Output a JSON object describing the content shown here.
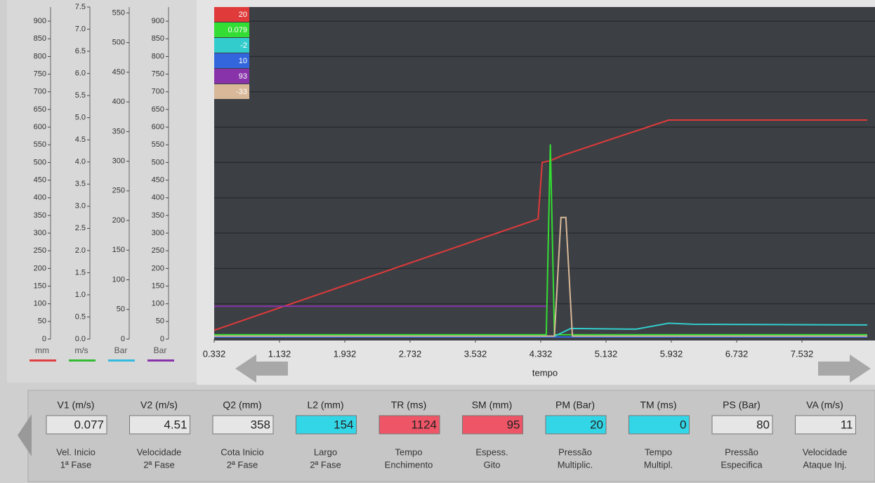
{
  "chart_data": {
    "type": "line",
    "xlabel": "tempo",
    "xlim": [
      0.332,
      8.332
    ],
    "xticks": [
      0.332,
      1.132,
      1.932,
      2.732,
      3.532,
      4.332,
      5.132,
      5.932,
      6.732,
      7.532
    ],
    "grid": true,
    "axes": [
      {
        "unit": "mm",
        "color": "#e04040",
        "ylim": [
          0,
          940
        ],
        "yticks": [
          0,
          50,
          100,
          150,
          200,
          250,
          300,
          350,
          400,
          450,
          500,
          550,
          600,
          650,
          700,
          750,
          800,
          850,
          900
        ]
      },
      {
        "unit": "m/s",
        "color": "#33bb33",
        "ylim": [
          0,
          7.5
        ],
        "yticks": [
          {
            "value": 0,
            "label": "0.0"
          },
          0.5,
          {
            "value": 1,
            "label": "1.0"
          },
          1.5,
          {
            "value": 2,
            "label": "2.0"
          },
          2.5,
          {
            "value": 3,
            "label": "3.0"
          },
          3.5,
          {
            "value": 4,
            "label": "4.0"
          },
          4.5,
          {
            "value": 5,
            "label": "5.0"
          },
          5.5,
          {
            "value": 6,
            "label": "6.0"
          },
          6.5,
          {
            "value": 7,
            "label": "7.0"
          },
          7.5
        ]
      },
      {
        "unit": "Bar",
        "color": "#33bbdd",
        "ylim": [
          0,
          560
        ],
        "yticks": [
          0,
          50,
          100,
          150,
          200,
          250,
          300,
          350,
          400,
          450,
          500,
          550
        ]
      },
      {
        "unit": "Bar",
        "color": "#8833aa",
        "ylim": [
          0,
          940
        ],
        "yticks": [
          0,
          50,
          100,
          150,
          200,
          250,
          300,
          350,
          400,
          450,
          500,
          550,
          600,
          650,
          700,
          750,
          800,
          850,
          900
        ]
      }
    ],
    "series": [
      {
        "readout": 20,
        "color": "#e03a3a",
        "axis": 0,
        "x": [
          0.332,
          4.3,
          4.35,
          4.45,
          4.6,
          5.9,
          8.332
        ],
        "values": [
          25,
          340,
          500,
          505,
          520,
          620,
          620
        ]
      },
      {
        "readout": 0.079,
        "color": "#33dd33",
        "axis": 1,
        "x": [
          0.332,
          4.4,
          4.45,
          4.5,
          8.332
        ],
        "values": [
          0.1,
          0.1,
          4.4,
          0.1,
          0.1
        ]
      },
      {
        "readout": -2,
        "color": "#33cccc",
        "axis": 3,
        "x": [
          0.332,
          4.5,
          4.7,
          5.5,
          5.9,
          6.2,
          8.332
        ],
        "values": [
          8,
          8,
          30,
          28,
          45,
          42,
          40
        ]
      },
      {
        "readout": 10,
        "color": "#3366dd",
        "axis": 0,
        "x": [
          0.332,
          8.332
        ],
        "values": [
          6,
          6
        ]
      },
      {
        "readout": 93,
        "color": "#8833aa",
        "axis": 0,
        "x": [
          0.332,
          4.4
        ],
        "values": [
          93,
          93
        ]
      },
      {
        "readout": -33,
        "color": "#d8b898",
        "axis": 2,
        "x": [
          0.332,
          4.5,
          4.58,
          4.64,
          4.72,
          8.332
        ],
        "values": [
          5,
          5,
          205,
          205,
          5,
          5
        ]
      }
    ]
  },
  "panel": {
    "fields": [
      {
        "label": "V1 (m/s)",
        "value": 0.077,
        "desc": [
          "Vel. Inicio",
          "1ª Fase"
        ],
        "color": "#e6e6e6"
      },
      {
        "label": "V2 (m/s)",
        "value": 4.51,
        "desc": [
          "Velocidade",
          "2ª Fase"
        ],
        "color": "#e6e6e6"
      },
      {
        "label": "Q2 (mm)",
        "value": 358,
        "desc": [
          "Cota Inicio",
          "2ª Fase"
        ],
        "color": "#e6e6e6"
      },
      {
        "label": "L2 (mm)",
        "value": 154,
        "desc": [
          "Largo",
          "2ª Fase"
        ],
        "color": "#33d6e6"
      },
      {
        "label": "TR (ms)",
        "value": 1124,
        "desc": [
          "Tempo",
          "Enchimento"
        ],
        "color": "#ee5566"
      },
      {
        "label": "SM (mm)",
        "value": 95,
        "desc": [
          "Espess.",
          "Gito"
        ],
        "color": "#ee5566"
      },
      {
        "label": "PM (Bar)",
        "value": 20,
        "desc": [
          "Pressão",
          "Multiplic."
        ],
        "color": "#33d6e6"
      },
      {
        "label": "TM (ms)",
        "value": 0,
        "desc": [
          "Tempo",
          "Multipl."
        ],
        "color": "#33d6e6"
      },
      {
        "label": "PS (Bar)",
        "value": 80,
        "desc": [
          "Pressão",
          "Especifica"
        ],
        "color": "#e6e6e6"
      },
      {
        "label": "VA (m/s)",
        "value": 11,
        "desc": [
          "Velocidade",
          "Ataque Inj."
        ],
        "color": "#e6e6e6"
      }
    ]
  }
}
